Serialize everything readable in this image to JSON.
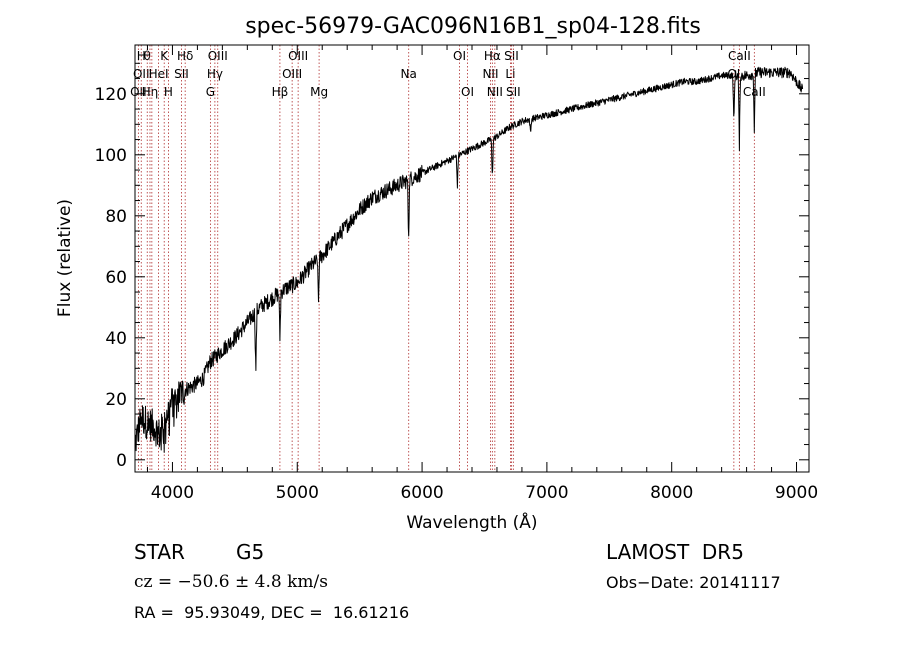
{
  "chart_data": {
    "type": "line",
    "title": "spec-56979-GAC096N16B1_sp04-128.fits",
    "xlabel": "Wavelength (Å)",
    "ylabel": "Flux (relative)",
    "xlim": [
      3700,
      9100
    ],
    "ylim": [
      -4,
      136
    ],
    "x_ticks": [
      4000,
      5000,
      6000,
      7000,
      8000,
      9000
    ],
    "y_ticks": [
      0,
      20,
      40,
      60,
      80,
      100,
      120
    ],
    "grid": false,
    "line_color": "#000000",
    "marker_color": "#b03030",
    "series": [
      {
        "x": [
          3700,
          3750,
          3800,
          3850,
          3900,
          3950,
          4000,
          4050,
          4100,
          4150,
          4200,
          4250,
          4300,
          4350,
          4400,
          4500,
          4600,
          4700,
          4800,
          4900,
          5000,
          5100,
          5200,
          5300,
          5400,
          5500,
          5600,
          5700,
          5800,
          5900,
          6000,
          6100,
          6200,
          6300,
          6400,
          6500,
          6600,
          6700,
          6800,
          6900,
          7000,
          7100,
          7200,
          7300,
          7400,
          7500,
          7600,
          7700,
          7800,
          7900,
          8000,
          8100,
          8200,
          8300,
          8400,
          8500,
          8600,
          8700,
          8800,
          8900,
          8950,
          9000,
          9050
        ],
        "y": [
          5,
          14,
          12,
          11,
          8,
          15,
          19,
          21,
          23,
          24,
          25,
          27,
          32,
          34,
          36,
          40,
          45,
          50,
          53,
          56,
          58,
          63,
          67,
          72,
          77,
          82,
          86,
          88,
          90,
          92,
          94,
          96,
          98,
          100,
          102,
          104,
          106,
          109,
          111,
          112,
          113,
          114,
          115,
          116,
          117,
          118,
          119,
          120,
          121,
          122,
          123,
          124,
          124,
          125,
          126,
          126,
          126,
          127,
          127,
          127,
          127,
          124,
          121
        ]
      }
    ],
    "absorption_lines": [
      {
        "x": 5892,
        "y": 73
      },
      {
        "x": 4668,
        "y": 28
      },
      {
        "x": 4861,
        "y": 40
      },
      {
        "x": 5170,
        "y": 52
      },
      {
        "x": 6563,
        "y": 92
      },
      {
        "x": 6283,
        "y": 90
      },
      {
        "x": 6869,
        "y": 107
      },
      {
        "x": 8498,
        "y": 110
      },
      {
        "x": 8542,
        "y": 103
      },
      {
        "x": 8662,
        "y": 108
      }
    ],
    "line_markers": [
      {
        "x": 3727,
        "rows": [
          "",
          "",
          "OII"
        ]
      },
      {
        "x": 3750,
        "rows": [
          "H",
          "OII",
          ""
        ]
      },
      {
        "x": 3798,
        "rows": [
          "θ",
          "",
          ""
        ]
      },
      {
        "x": 3820,
        "rows": [
          "",
          "",
          "Hη"
        ]
      },
      {
        "x": 3835,
        "rows": [
          "",
          "",
          ""
        ]
      },
      {
        "x": 3889,
        "rows": [
          "",
          "HeI",
          ""
        ]
      },
      {
        "x": 3934,
        "rows": [
          "K",
          "",
          ""
        ]
      },
      {
        "x": 3968,
        "rows": [
          "",
          "",
          "H"
        ]
      },
      {
        "x": 4072,
        "rows": [
          "",
          "SII",
          ""
        ]
      },
      {
        "x": 4102,
        "rows": [
          "Hδ",
          "",
          ""
        ]
      },
      {
        "x": 4304,
        "rows": [
          "",
          "",
          "G"
        ]
      },
      {
        "x": 4340,
        "rows": [
          "",
          "Hγ",
          ""
        ]
      },
      {
        "x": 4363,
        "rows": [
          "OIII",
          "",
          ""
        ]
      },
      {
        "x": 4861,
        "rows": [
          "",
          "",
          "Hβ"
        ]
      },
      {
        "x": 4959,
        "rows": [
          "",
          "OIII",
          ""
        ]
      },
      {
        "x": 5007,
        "rows": [
          "OIII",
          "",
          ""
        ]
      },
      {
        "x": 5175,
        "rows": [
          "",
          "",
          "Mg"
        ]
      },
      {
        "x": 5893,
        "rows": [
          "",
          "Na",
          ""
        ]
      },
      {
        "x": 6300,
        "rows": [
          "OI",
          "",
          ""
        ]
      },
      {
        "x": 6364,
        "rows": [
          "",
          "",
          "OI"
        ]
      },
      {
        "x": 6548,
        "rows": [
          "",
          "NII",
          ""
        ]
      },
      {
        "x": 6563,
        "rows": [
          "Hα",
          "",
          ""
        ]
      },
      {
        "x": 6583,
        "rows": [
          "",
          "",
          "NII"
        ]
      },
      {
        "x": 6708,
        "rows": [
          "",
          "Li",
          ""
        ]
      },
      {
        "x": 6716,
        "rows": [
          "SII",
          "",
          ""
        ]
      },
      {
        "x": 6731,
        "rows": [
          "",
          "",
          "SII"
        ]
      },
      {
        "x": 8498,
        "rows": [
          "",
          "OI",
          ""
        ]
      },
      {
        "x": 8542,
        "rows": [
          "CaII",
          "",
          ""
        ]
      },
      {
        "x": 8662,
        "rows": [
          "",
          "",
          "CaII"
        ]
      }
    ]
  },
  "info": {
    "class_label": "STAR",
    "subclass_label": "G5",
    "survey_label": "LAMOST  DR5",
    "cz_text": "cz = −50.6 ± 4.8 km/s",
    "obs_date_text": "Obs−Date: 20141117",
    "coords_text": "RA =  95.93049, DEC =  16.61216"
  }
}
